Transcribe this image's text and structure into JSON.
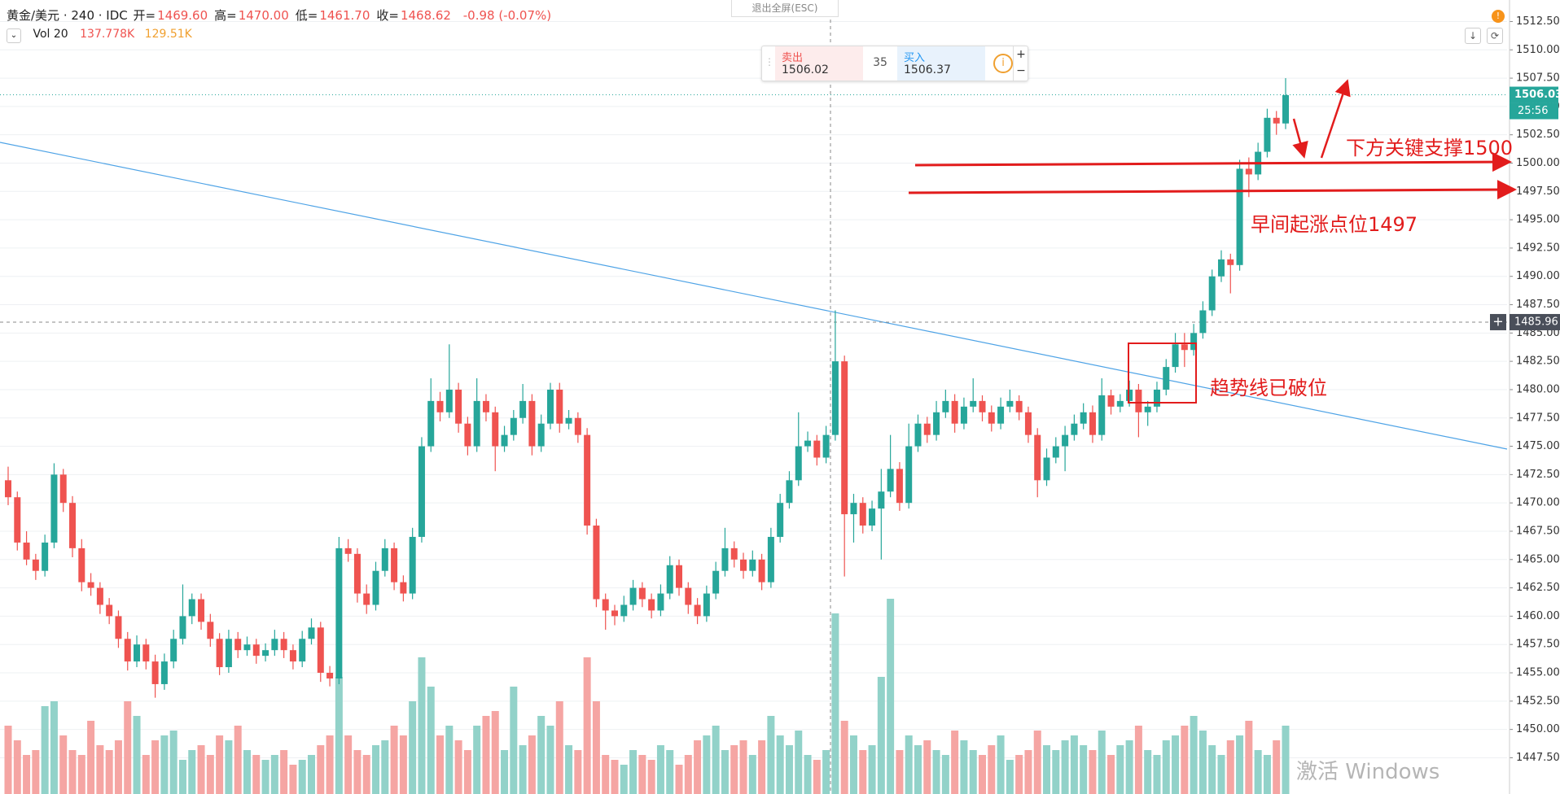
{
  "chart_data": {
    "type": "candlestick",
    "title": "黄金/美元 · 240 · IDC",
    "ohlc_legend": [
      {
        "label": "开=",
        "value": "1469.60"
      },
      {
        "label": "高=",
        "value": "1470.00"
      },
      {
        "label": "低=",
        "value": "1461.70"
      },
      {
        "label": "收=",
        "value": "1468.62"
      }
    ],
    "change": "-0.98 (-0.07%)",
    "volume_legend": {
      "name": "Vol 20",
      "values": [
        "137.778K",
        "129.51K"
      ]
    },
    "up_color": "#26a69a",
    "down_color": "#ef5350",
    "up_volume_color": "#92d2c9",
    "down_volume_color": "#f5a5a3",
    "trendline_color": "#4ea3e6",
    "ohlc": [
      [
        1472,
        1473.2,
        1469.8,
        1470.5
      ],
      [
        1470.5,
        1471,
        1465.8,
        1466.5
      ],
      [
        1466.5,
        1467.5,
        1464.5,
        1465
      ],
      [
        1465,
        1465.5,
        1463.2,
        1464
      ],
      [
        1464,
        1467.2,
        1463.5,
        1466.5
      ],
      [
        1466.5,
        1473.5,
        1466,
        1472.5
      ],
      [
        1472.5,
        1473,
        1469.2,
        1470
      ],
      [
        1470,
        1470.6,
        1465.2,
        1466
      ],
      [
        1466,
        1466.8,
        1462.2,
        1463
      ],
      [
        1463,
        1463.8,
        1461.8,
        1462.5
      ],
      [
        1462.5,
        1463,
        1460.2,
        1461
      ],
      [
        1461,
        1461.6,
        1459.3,
        1460
      ],
      [
        1460,
        1460.5,
        1457.2,
        1458
      ],
      [
        1458,
        1458.6,
        1455.2,
        1456
      ],
      [
        1456,
        1458.3,
        1455.5,
        1457.5
      ],
      [
        1457.5,
        1458,
        1455.3,
        1456
      ],
      [
        1456,
        1456.6,
        1452.8,
        1454
      ],
      [
        1454,
        1456.7,
        1453.5,
        1456
      ],
      [
        1456,
        1458.8,
        1455.4,
        1458
      ],
      [
        1458,
        1462.8,
        1457.5,
        1460
      ],
      [
        1460,
        1462,
        1459.3,
        1461.5
      ],
      [
        1461.5,
        1462,
        1458.8,
        1459.5
      ],
      [
        1459.5,
        1460.2,
        1457.3,
        1458
      ],
      [
        1458,
        1458.5,
        1454.8,
        1455.5
      ],
      [
        1455.5,
        1458.8,
        1455,
        1458
      ],
      [
        1458,
        1458.6,
        1456.3,
        1457
      ],
      [
        1457,
        1458.2,
        1456.5,
        1457.5
      ],
      [
        1457.5,
        1458,
        1455.8,
        1456.5
      ],
      [
        1456.5,
        1457.6,
        1456,
        1457
      ],
      [
        1457,
        1458.8,
        1456.5,
        1458
      ],
      [
        1458,
        1458.6,
        1456.3,
        1457
      ],
      [
        1457,
        1457.5,
        1455.3,
        1456
      ],
      [
        1456,
        1458.7,
        1455.5,
        1458
      ],
      [
        1458,
        1459.8,
        1457.5,
        1459
      ],
      [
        1459,
        1459.5,
        1454.2,
        1455
      ],
      [
        1455,
        1455.6,
        1453.8,
        1454.5
      ],
      [
        1454.5,
        1467,
        1454,
        1466
      ],
      [
        1466,
        1466.8,
        1464.8,
        1465.5
      ],
      [
        1465.5,
        1466,
        1461.2,
        1462
      ],
      [
        1462,
        1462.8,
        1460.2,
        1461
      ],
      [
        1461,
        1464.8,
        1460.5,
        1464
      ],
      [
        1464,
        1466.8,
        1463.5,
        1466
      ],
      [
        1466,
        1466.5,
        1462.3,
        1463
      ],
      [
        1463,
        1463.6,
        1461.3,
        1462
      ],
      [
        1462,
        1467.8,
        1461.5,
        1467
      ],
      [
        1467,
        1475.8,
        1466.5,
        1475
      ],
      [
        1475,
        1481,
        1474.5,
        1479
      ],
      [
        1479,
        1479.8,
        1477.2,
        1478
      ],
      [
        1478,
        1484,
        1477.5,
        1480
      ],
      [
        1480,
        1480.6,
        1476.2,
        1477
      ],
      [
        1477,
        1477.6,
        1474.2,
        1475
      ],
      [
        1475,
        1481,
        1474.5,
        1479
      ],
      [
        1479,
        1479.6,
        1477.2,
        1478
      ],
      [
        1478,
        1478.5,
        1472.8,
        1475
      ],
      [
        1475,
        1476.8,
        1474.5,
        1476
      ],
      [
        1476,
        1478.2,
        1475.5,
        1477.5
      ],
      [
        1477.5,
        1480.5,
        1477,
        1479
      ],
      [
        1479,
        1479.6,
        1474.2,
        1475
      ],
      [
        1475,
        1477.8,
        1474.5,
        1477
      ],
      [
        1477,
        1480.6,
        1476.5,
        1480
      ],
      [
        1480,
        1480.6,
        1476.2,
        1477
      ],
      [
        1477,
        1478.2,
        1476.5,
        1477.5
      ],
      [
        1477.5,
        1478,
        1475.3,
        1476
      ],
      [
        1476,
        1476.6,
        1467.2,
        1468
      ],
      [
        1468,
        1468.6,
        1460.8,
        1461.5
      ],
      [
        1461.5,
        1462,
        1458.8,
        1460.5
      ],
      [
        1460.5,
        1461,
        1459.2,
        1460
      ],
      [
        1460,
        1461.8,
        1459.5,
        1461
      ],
      [
        1461,
        1463.2,
        1460.5,
        1462.5
      ],
      [
        1462.5,
        1463,
        1460.8,
        1461.5
      ],
      [
        1461.5,
        1462,
        1459.8,
        1460.5
      ],
      [
        1460.5,
        1462.8,
        1460,
        1462
      ],
      [
        1462,
        1465.3,
        1461.5,
        1464.5
      ],
      [
        1464.5,
        1465,
        1461.8,
        1462.5
      ],
      [
        1462.5,
        1463,
        1460.2,
        1461
      ],
      [
        1461,
        1461.6,
        1459.3,
        1460
      ],
      [
        1460,
        1462.7,
        1459.5,
        1462
      ],
      [
        1462,
        1464.8,
        1461.5,
        1464
      ],
      [
        1464,
        1467.8,
        1463.5,
        1466
      ],
      [
        1466,
        1466.6,
        1464.3,
        1465
      ],
      [
        1465,
        1465.6,
        1463.3,
        1464
      ],
      [
        1464,
        1465.8,
        1463.5,
        1465
      ],
      [
        1465,
        1465.5,
        1462.3,
        1463
      ],
      [
        1463,
        1467.8,
        1462.5,
        1467
      ],
      [
        1467,
        1470.8,
        1466.5,
        1470
      ],
      [
        1470,
        1472.8,
        1469.5,
        1472
      ],
      [
        1472,
        1478,
        1471.5,
        1475
      ],
      [
        1475,
        1476.3,
        1474.5,
        1475.5
      ],
      [
        1475.5,
        1476,
        1473.3,
        1474
      ],
      [
        1474,
        1476.8,
        1473.5,
        1476
      ],
      [
        1476,
        1487,
        1475.5,
        1482.5
      ],
      [
        1482.5,
        1483,
        1463.5,
        1469
      ],
      [
        1469,
        1470.8,
        1466.5,
        1470
      ],
      [
        1470,
        1470.5,
        1467.3,
        1468
      ],
      [
        1468,
        1470.2,
        1467.5,
        1469.5
      ],
      [
        1469.5,
        1473,
        1465,
        1471
      ],
      [
        1471,
        1476,
        1470.5,
        1473
      ],
      [
        1473,
        1473.6,
        1469.3,
        1470
      ],
      [
        1470,
        1477,
        1469.5,
        1475
      ],
      [
        1475,
        1477.8,
        1474.5,
        1477
      ],
      [
        1477,
        1477.6,
        1475.3,
        1476
      ],
      [
        1476,
        1479,
        1475.5,
        1478
      ],
      [
        1478,
        1480,
        1477.5,
        1479
      ],
      [
        1479,
        1479.6,
        1476.2,
        1477
      ],
      [
        1477,
        1479.3,
        1476.5,
        1478.5
      ],
      [
        1478.5,
        1481,
        1478,
        1479
      ],
      [
        1479,
        1479.5,
        1477.2,
        1478
      ],
      [
        1478,
        1478.6,
        1476.3,
        1477
      ],
      [
        1477,
        1479.3,
        1476.5,
        1478.5
      ],
      [
        1478.5,
        1480,
        1478,
        1479
      ],
      [
        1479,
        1479.5,
        1477.3,
        1478
      ],
      [
        1478,
        1478.5,
        1475.3,
        1476
      ],
      [
        1476,
        1476.6,
        1470.5,
        1472
      ],
      [
        1472,
        1474.8,
        1471.5,
        1474
      ],
      [
        1474,
        1475.8,
        1473.5,
        1475
      ],
      [
        1475,
        1476.8,
        1472.8,
        1476
      ],
      [
        1476,
        1477.8,
        1475.5,
        1477
      ],
      [
        1477,
        1478.8,
        1476.5,
        1478
      ],
      [
        1478,
        1478.6,
        1475.3,
        1476
      ],
      [
        1476,
        1481,
        1475.5,
        1479.5
      ],
      [
        1479.5,
        1480,
        1477.8,
        1478.5
      ],
      [
        1478.5,
        1479.6,
        1478,
        1479
      ],
      [
        1479,
        1480.8,
        1478.5,
        1480
      ],
      [
        1480,
        1480.5,
        1475.8,
        1478
      ],
      [
        1478,
        1479,
        1476.8,
        1478.5
      ],
      [
        1478.5,
        1480.7,
        1478,
        1480
      ],
      [
        1480,
        1482.7,
        1479.5,
        1482
      ],
      [
        1482,
        1485,
        1481.5,
        1484
      ],
      [
        1484,
        1485,
        1482,
        1483.5
      ],
      [
        1483.5,
        1485.8,
        1483,
        1485
      ],
      [
        1485,
        1487.8,
        1484.5,
        1487
      ],
      [
        1487,
        1490.6,
        1486.5,
        1490
      ],
      [
        1490,
        1492.3,
        1489.5,
        1491.5
      ],
      [
        1491.5,
        1492,
        1488.5,
        1491
      ],
      [
        1491,
        1500.3,
        1490.5,
        1499.5
      ],
      [
        1499.5,
        1500.5,
        1497,
        1499
      ],
      [
        1499,
        1501.8,
        1498.5,
        1501
      ],
      [
        1501,
        1504.8,
        1500.5,
        1504
      ],
      [
        1504,
        1504.6,
        1502.5,
        1503.5
      ],
      [
        1503.5,
        1507.5,
        1503,
        1506
      ]
    ],
    "volume": [
      70,
      55,
      40,
      45,
      90,
      95,
      60,
      45,
      40,
      75,
      50,
      45,
      55,
      95,
      80,
      40,
      55,
      60,
      65,
      35,
      45,
      50,
      40,
      60,
      55,
      70,
      45,
      40,
      35,
      40,
      45,
      30,
      35,
      40,
      50,
      60,
      120,
      60,
      45,
      40,
      50,
      55,
      70,
      60,
      95,
      140,
      110,
      60,
      70,
      55,
      45,
      70,
      80,
      85,
      45,
      110,
      50,
      60,
      80,
      70,
      95,
      50,
      45,
      140,
      95,
      40,
      35,
      30,
      45,
      40,
      35,
      50,
      45,
      30,
      40,
      55,
      60,
      70,
      45,
      50,
      55,
      40,
      55,
      80,
      60,
      50,
      65,
      40,
      35,
      45,
      185,
      75,
      60,
      45,
      50,
      120,
      200,
      45,
      60,
      50,
      55,
      45,
      40,
      65,
      55,
      45,
      40,
      50,
      60,
      35,
      40,
      45,
      65,
      50,
      45,
      55,
      60,
      50,
      45,
      65,
      40,
      50,
      55,
      70,
      45,
      40,
      55,
      60,
      70,
      80,
      65,
      50,
      40,
      55,
      60,
      75,
      45,
      40,
      55,
      70
    ],
    "vlim": [
      0,
      250
    ],
    "ylim": [
      1444.3,
      1514.4
    ],
    "yticks": [
      {
        "value": 1447.5,
        "label": "1447.50"
      },
      {
        "value": 1450,
        "label": "1450.00"
      },
      {
        "value": 1452.5,
        "label": "1452.50"
      },
      {
        "value": 1455,
        "label": "1455.00"
      },
      {
        "value": 1457.5,
        "label": "1457.50"
      },
      {
        "value": 1460,
        "label": "1460.00"
      },
      {
        "value": 1462.5,
        "label": "1462.50"
      },
      {
        "value": 1465,
        "label": "1465.00"
      },
      {
        "value": 1467.5,
        "label": "1467.50"
      },
      {
        "value": 1470,
        "label": "1470.00"
      },
      {
        "value": 1472.5,
        "label": "1472.50"
      },
      {
        "value": 1475,
        "label": "1475.00"
      },
      {
        "value": 1477.5,
        "label": "1477.50"
      },
      {
        "value": 1480,
        "label": "1480.00"
      },
      {
        "value": 1482.5,
        "label": "1482.50"
      },
      {
        "value": 1485,
        "label": "1485.00"
      },
      {
        "value": 1487.5,
        "label": "1487.50"
      },
      {
        "value": 1490,
        "label": "1490.00"
      },
      {
        "value": 1492.5,
        "label": "1492.50"
      },
      {
        "value": 1495,
        "label": "1495.00"
      },
      {
        "value": 1497.5,
        "label": "1497.50"
      },
      {
        "value": 1500,
        "label": "1500.00"
      },
      {
        "value": 1502.5,
        "label": "1502.50"
      },
      {
        "value": 1505,
        "label": "1505.00"
      },
      {
        "value": 1507.5,
        "label": "1507.50"
      },
      {
        "value": 1510,
        "label": "1510.00"
      },
      {
        "value": 1512.5,
        "label": "1512.50"
      }
    ],
    "grid": true,
    "last_price": {
      "value": 1506.03,
      "label": "1506.03"
    },
    "countdown": "25:56",
    "crosshair_price": {
      "value": 1485.96,
      "label": "1485.96"
    },
    "annotations": [
      "下方关键支撑1500",
      "早间起涨点位1497",
      "趋势线已破位"
    ]
  },
  "trade_panel": {
    "sell_label": "卖出",
    "sell_price": "1506.02",
    "quantity": "35",
    "buy_label": "买入",
    "buy_price": "1506.37"
  },
  "exit_fullscreen": "退出全屏(ESC)",
  "watermark": "激活 Windows"
}
